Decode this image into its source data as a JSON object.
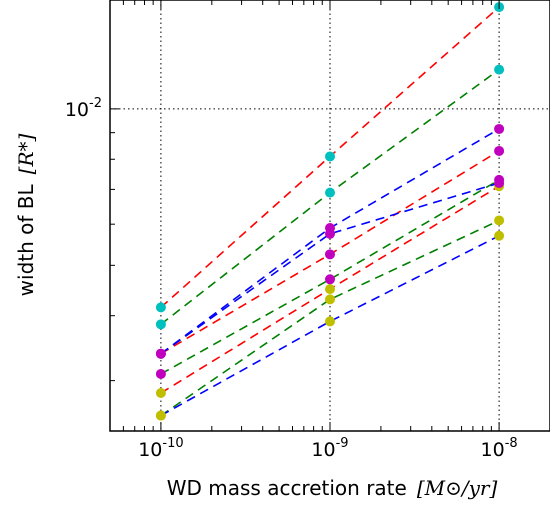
{
  "chart_data": {
    "type": "scatter",
    "title": "",
    "xlabel": "WD mass accretion rate",
    "xlabel_math": "[M⊙/yr]",
    "ylabel": "width of BL",
    "ylabel_math": "[R*]",
    "xscale": "log",
    "yscale": "log",
    "xlim": [
      5e-11,
      2e-08
    ],
    "ylim": [
      0.0024,
      0.0162
    ],
    "grid": "dotted",
    "x_ticks": [
      {
        "base": "10",
        "exp": "-10",
        "value": 1e-10
      },
      {
        "base": "10",
        "exp": "-9",
        "value": 1e-09
      },
      {
        "base": "10",
        "exp": "-8",
        "value": 1e-08
      }
    ],
    "y_ticks": [
      {
        "base": "10",
        "exp": "-2",
        "value": 0.01
      }
    ],
    "x": [
      1e-10,
      1e-09,
      1e-08
    ],
    "series": [
      {
        "color": "#ff0000",
        "marker": "#00bfbf",
        "values": [
          0.00415,
          0.0081,
          0.0157
        ]
      },
      {
        "color": "#008000",
        "marker": "#00bfbf",
        "values": [
          0.00385,
          0.0069,
          0.0119
        ]
      },
      {
        "color": "#0000ff",
        "marker": "#bf00bf",
        "values": [
          0.00338,
          0.0059,
          0.00915
        ]
      },
      {
        "color": "#ff0000",
        "marker": "#bf00bf",
        "values": [
          0.00338,
          0.00525,
          0.0083
        ]
      },
      {
        "color": "#008000",
        "marker": "#bf00bf",
        "values": [
          0.00309,
          0.0047,
          0.0073
        ]
      },
      {
        "color": "#ff0000",
        "marker": "#bfbf00",
        "values": [
          0.00284,
          0.0045,
          0.0071
        ]
      },
      {
        "color": "#008000",
        "marker": "#bfbf00",
        "values": [
          0.00257,
          0.0043,
          0.0061
        ]
      },
      {
        "color": "#0000ff",
        "marker": "#bfbf00",
        "values": [
          0.00257,
          0.0039,
          0.0057
        ]
      },
      {
        "color": "#0000ff",
        "marker": "#bf00bf",
        "values": [
          0.00338,
          0.00575,
          0.0072
        ]
      }
    ]
  }
}
